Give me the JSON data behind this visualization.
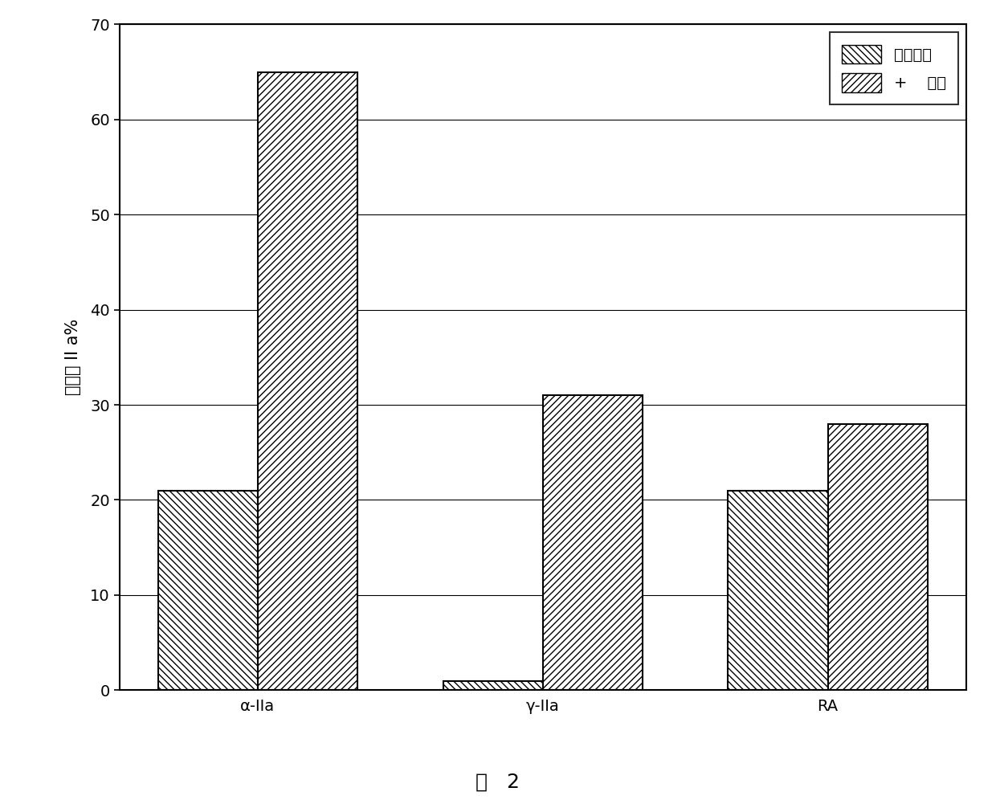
{
  "groups": [
    "α-IIa",
    "γ-IIa",
    "RA"
  ],
  "no_heparin": [
    21,
    1,
    21
  ],
  "with_heparin": [
    65,
    31,
    28
  ],
  "ylabel": "结合的 II a%",
  "ylim": [
    0,
    70
  ],
  "yticks": [
    0,
    10,
    20,
    30,
    40,
    50,
    60,
    70
  ],
  "legend_no_heparin": "没有肾素",
  "legend_with_heparin": "+    肾素",
  "caption": "图   2",
  "bar_width": 0.35,
  "edge_color": "#000000",
  "face_color": "#ffffff",
  "hatch_no_heparin": "\\\\\\\\",
  "hatch_with_heparin": "////",
  "label_fontsize": 15,
  "tick_fontsize": 14,
  "legend_fontsize": 14,
  "caption_fontsize": 18
}
